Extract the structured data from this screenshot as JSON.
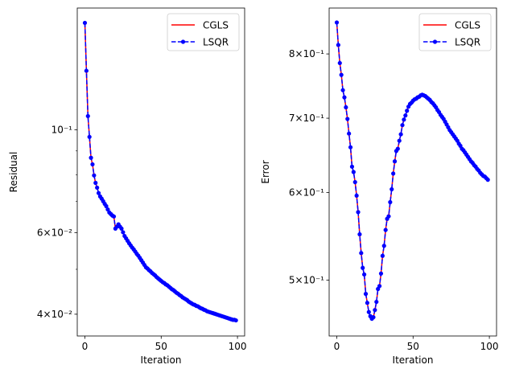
{
  "chart_data": [
    {
      "type": "line",
      "xlabel": "Iteration",
      "ylabel": "Residual",
      "yscale": "log",
      "xlim": [
        -5,
        104.7
      ],
      "ylim": [
        0.0359,
        0.183
      ],
      "xticks": [
        {
          "value": 0,
          "label": "0"
        },
        {
          "value": 50,
          "label": "50"
        },
        {
          "value": 100,
          "label": "100"
        }
      ],
      "yticks": [
        {
          "value": 0.1,
          "label": "10⁻¹"
        },
        {
          "value": 0.06,
          "label": "6×10⁻²"
        },
        {
          "value": 0.04,
          "label": "4×10⁻²"
        }
      ],
      "yminor": [
        0.05,
        0.07,
        0.08,
        0.09
      ],
      "grid": false,
      "legend": "top-right",
      "x_start": 0,
      "series": [
        {
          "name": "CGLS",
          "color": "#ff0000",
          "style": "solid",
          "values": [
            0.17,
            0.134,
            0.107,
            0.0965,
            0.087,
            0.0842,
            0.0797,
            0.0768,
            0.075,
            0.073,
            0.0718,
            0.071,
            0.0701,
            0.0692,
            0.0684,
            0.0673,
            0.0663,
            0.0658,
            0.0653,
            0.065,
            0.0612,
            0.0618,
            0.0625,
            0.0618,
            0.0612,
            0.0601,
            0.059,
            0.0583,
            0.0576,
            0.0569,
            0.0563,
            0.0557,
            0.0552,
            0.0546,
            0.054,
            0.0535,
            0.0529,
            0.0523,
            0.0517,
            0.0511,
            0.0505,
            0.0502,
            0.0498,
            0.0495,
            0.0491,
            0.0488,
            0.0485,
            0.0481,
            0.0478,
            0.0475,
            0.0472,
            0.0469,
            0.0467,
            0.0464,
            0.0462,
            0.0459,
            0.0456,
            0.0453,
            0.0451,
            0.0448,
            0.0445,
            0.0443,
            0.044,
            0.0438,
            0.0435,
            0.0433,
            0.0431,
            0.0429,
            0.0426,
            0.0424,
            0.0422,
            0.042,
            0.0419,
            0.0417,
            0.0416,
            0.0414,
            0.0412,
            0.0411,
            0.0409,
            0.0408,
            0.0406,
            0.0405,
            0.0404,
            0.0403,
            0.0402,
            0.0401,
            0.04,
            0.0399,
            0.0398,
            0.0397,
            0.0396,
            0.0395,
            0.0394,
            0.0393,
            0.0392,
            0.0391,
            0.039,
            0.0389,
            0.0389,
            0.0388
          ]
        },
        {
          "name": "LSQR",
          "color": "#0000ff",
          "style": "dashed-dot-markers",
          "values": [
            0.17,
            0.134,
            0.107,
            0.0965,
            0.087,
            0.0842,
            0.0797,
            0.0768,
            0.075,
            0.073,
            0.0718,
            0.071,
            0.0701,
            0.0692,
            0.0684,
            0.0673,
            0.0663,
            0.0658,
            0.0653,
            0.065,
            0.0612,
            0.0618,
            0.0625,
            0.0618,
            0.0612,
            0.0601,
            0.059,
            0.0583,
            0.0576,
            0.0569,
            0.0563,
            0.0557,
            0.0552,
            0.0546,
            0.054,
            0.0535,
            0.0529,
            0.0523,
            0.0517,
            0.0511,
            0.0505,
            0.0502,
            0.0498,
            0.0495,
            0.0491,
            0.0488,
            0.0485,
            0.0481,
            0.0478,
            0.0475,
            0.0472,
            0.0469,
            0.0467,
            0.0464,
            0.0462,
            0.0459,
            0.0456,
            0.0453,
            0.0451,
            0.0448,
            0.0445,
            0.0443,
            0.044,
            0.0438,
            0.0435,
            0.0433,
            0.0431,
            0.0429,
            0.0426,
            0.0424,
            0.0422,
            0.042,
            0.0419,
            0.0417,
            0.0416,
            0.0414,
            0.0412,
            0.0411,
            0.0409,
            0.0408,
            0.0406,
            0.0405,
            0.0404,
            0.0403,
            0.0402,
            0.0401,
            0.04,
            0.0399,
            0.0398,
            0.0397,
            0.0396,
            0.0395,
            0.0394,
            0.0393,
            0.0392,
            0.0391,
            0.039,
            0.0389,
            0.0389,
            0.0388
          ]
        }
      ]
    },
    {
      "type": "line",
      "xlabel": "Iteration",
      "ylabel": "Error",
      "yscale": "log",
      "xlim": [
        -5,
        104.7
      ],
      "ylim": [
        0.4453,
        0.88
      ],
      "xticks": [
        {
          "value": 0,
          "label": "0"
        },
        {
          "value": 50,
          "label": "50"
        },
        {
          "value": 100,
          "label": "100"
        }
      ],
      "yticks": [
        {
          "value": 0.8,
          "label": "8×10⁻¹"
        },
        {
          "value": 0.7,
          "label": "7×10⁻¹"
        },
        {
          "value": 0.6,
          "label": "6×10⁻¹"
        },
        {
          "value": 0.5,
          "label": "5×10⁻¹"
        }
      ],
      "yminor": [],
      "grid": false,
      "legend": "top-right",
      "x_start": 0,
      "series": [
        {
          "name": "CGLS",
          "color": "#ff0000",
          "style": "solid",
          "values": [
            0.854,
            0.815,
            0.785,
            0.766,
            0.742,
            0.731,
            0.716,
            0.699,
            0.678,
            0.659,
            0.633,
            0.626,
            0.613,
            0.596,
            0.576,
            0.55,
            0.529,
            0.513,
            0.506,
            0.486,
            0.477,
            0.468,
            0.464,
            0.4615,
            0.463,
            0.47,
            0.478,
            0.491,
            0.494,
            0.507,
            0.526,
            0.537,
            0.555,
            0.568,
            0.571,
            0.588,
            0.604,
            0.624,
            0.64,
            0.654,
            0.657,
            0.668,
            0.677,
            0.69,
            0.698,
            0.704,
            0.711,
            0.717,
            0.721,
            0.723,
            0.726,
            0.728,
            0.729,
            0.731,
            0.732,
            0.734,
            0.735,
            0.734,
            0.733,
            0.731,
            0.729,
            0.727,
            0.724,
            0.722,
            0.719,
            0.716,
            0.712,
            0.709,
            0.705,
            0.702,
            0.699,
            0.695,
            0.691,
            0.687,
            0.683,
            0.68,
            0.677,
            0.674,
            0.671,
            0.668,
            0.664,
            0.661,
            0.657,
            0.655,
            0.652,
            0.649,
            0.646,
            0.643,
            0.64,
            0.638,
            0.635,
            0.633,
            0.63,
            0.628,
            0.625,
            0.623,
            0.621,
            0.62,
            0.618,
            0.616
          ]
        },
        {
          "name": "LSQR",
          "color": "#0000ff",
          "style": "dashed-dot-markers",
          "values": [
            0.854,
            0.815,
            0.785,
            0.766,
            0.742,
            0.731,
            0.716,
            0.699,
            0.678,
            0.659,
            0.633,
            0.626,
            0.613,
            0.596,
            0.576,
            0.55,
            0.529,
            0.513,
            0.506,
            0.486,
            0.477,
            0.468,
            0.464,
            0.4615,
            0.463,
            0.47,
            0.478,
            0.491,
            0.494,
            0.507,
            0.526,
            0.537,
            0.555,
            0.568,
            0.571,
            0.588,
            0.604,
            0.624,
            0.64,
            0.654,
            0.657,
            0.668,
            0.677,
            0.69,
            0.698,
            0.704,
            0.711,
            0.717,
            0.721,
            0.723,
            0.726,
            0.728,
            0.729,
            0.731,
            0.732,
            0.734,
            0.735,
            0.734,
            0.733,
            0.731,
            0.729,
            0.727,
            0.724,
            0.722,
            0.719,
            0.716,
            0.712,
            0.709,
            0.705,
            0.702,
            0.699,
            0.695,
            0.691,
            0.687,
            0.683,
            0.68,
            0.677,
            0.674,
            0.671,
            0.668,
            0.664,
            0.661,
            0.657,
            0.655,
            0.652,
            0.649,
            0.646,
            0.643,
            0.64,
            0.638,
            0.635,
            0.633,
            0.63,
            0.628,
            0.625,
            0.623,
            0.621,
            0.62,
            0.618,
            0.616
          ]
        }
      ]
    }
  ]
}
